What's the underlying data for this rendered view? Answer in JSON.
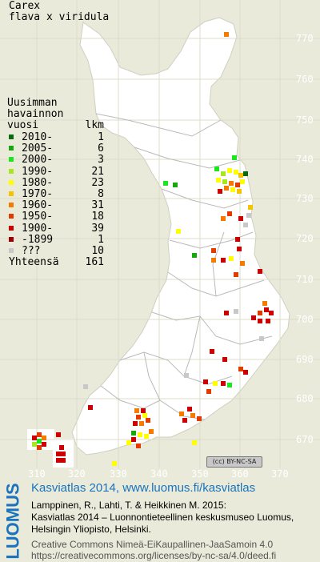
{
  "species": {
    "line1": "Carex",
    "line2": "flava x viridula"
  },
  "legend": {
    "title1": "Uusimman",
    "title2": "havainnon",
    "title3_left": "vuosi",
    "title3_right": "lkm",
    "rows": [
      {
        "label": "2010-",
        "count": "1",
        "color": "#0a6b0a"
      },
      {
        "label": "2005-",
        "count": "6",
        "color": "#17a80f"
      },
      {
        "label": "2000-",
        "count": "3",
        "color": "#1ee61e"
      },
      {
        "label": "1990-",
        "count": "21",
        "color": "#a8e61e"
      },
      {
        "label": "1980-",
        "count": "23",
        "color": "#ffff00"
      },
      {
        "label": "1970-",
        "count": "8",
        "color": "#f5c400"
      },
      {
        "label": "1960-",
        "count": "31",
        "color": "#f57a00"
      },
      {
        "label": "1950-",
        "count": "18",
        "color": "#e33a00"
      },
      {
        "label": "1900-",
        "count": "39",
        "color": "#cc0000"
      },
      {
        "label": "-1899",
        "count": "1",
        "color": "#990000"
      },
      {
        "label": "???",
        "count": "10",
        "color": "#c8c8c8"
      }
    ],
    "total_label": "Yhteensä",
    "total_count": "161"
  },
  "axes": {
    "y_ticks": [
      "770",
      "760",
      "750",
      "740",
      "730",
      "720",
      "710",
      "700",
      "690",
      "680",
      "670"
    ],
    "x_ticks": [
      "310",
      "320",
      "330",
      "340",
      "350",
      "360",
      "370"
    ]
  },
  "badge": {
    "text": "(cc) BY-NC-SA"
  },
  "footer": {
    "logo": "LUOMUS",
    "atlas_line": "Kasviatlas 2014, www.luomus.fi/kasviatlas",
    "cite1": "Lamppinen, R., Lahti, T. & Heikkinen M. 2015:",
    "cite2": "Kasviatlas 2014 – Luonnontieteellinen keskusmuseo Luomus,",
    "cite3": "Helsingin Yliopisto, Helsinki.",
    "license1": "Creative Commons Nimeä-EiKaupallinen-JaaSamoin 4.0",
    "license2": "https://creativecommons.org/licenses/by-nc-sa/4.0/deed.fi"
  },
  "colors": {
    "background": "#e9ead9",
    "land": "#ffffff",
    "grid": "#e2e2d0",
    "boundary": "#b5b5b5",
    "link": "#1a73bd"
  }
}
